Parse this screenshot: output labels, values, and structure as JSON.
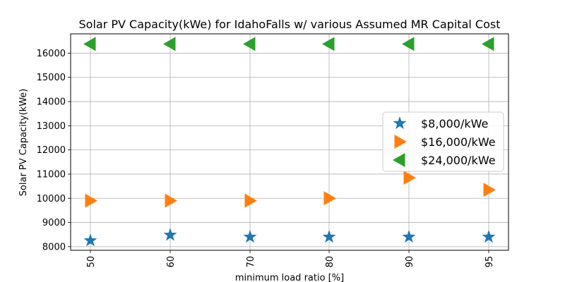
{
  "chart_data": {
    "type": "scatter",
    "title": "Solar PV Capacity(kWe) for IdahoFalls w/ various Assumed MR Capital Cost",
    "xlabel": "minimum load ratio [%]",
    "ylabel": "Solar PV Capacity(kWe)",
    "categories": [
      "50",
      "60",
      "70",
      "80",
      "90",
      "95"
    ],
    "ylim": [
      7850,
      16800
    ],
    "yticks": [
      8000,
      9000,
      10000,
      11000,
      12000,
      13000,
      14000,
      15000,
      16000
    ],
    "ytick_labels": [
      "8000",
      "9000",
      "10000",
      "11000",
      "12000",
      "13000",
      "14000",
      "15000",
      "16000"
    ],
    "grid": true,
    "legend_position": "center-right",
    "series": [
      {
        "name": "$8,000/kWe",
        "marker": "star",
        "color": "#1f77b4",
        "values": [
          8250,
          8480,
          8400,
          8400,
          8400,
          8400
        ]
      },
      {
        "name": "$16,000/kWe",
        "marker": "triangle-right",
        "color": "#ff7f0e",
        "values": [
          9900,
          9900,
          9900,
          10000,
          10850,
          10350
        ]
      },
      {
        "name": "$24,000/kWe",
        "marker": "triangle-left",
        "color": "#2ca02c",
        "values": [
          16380,
          16380,
          16380,
          16380,
          16380,
          16380
        ]
      }
    ]
  }
}
